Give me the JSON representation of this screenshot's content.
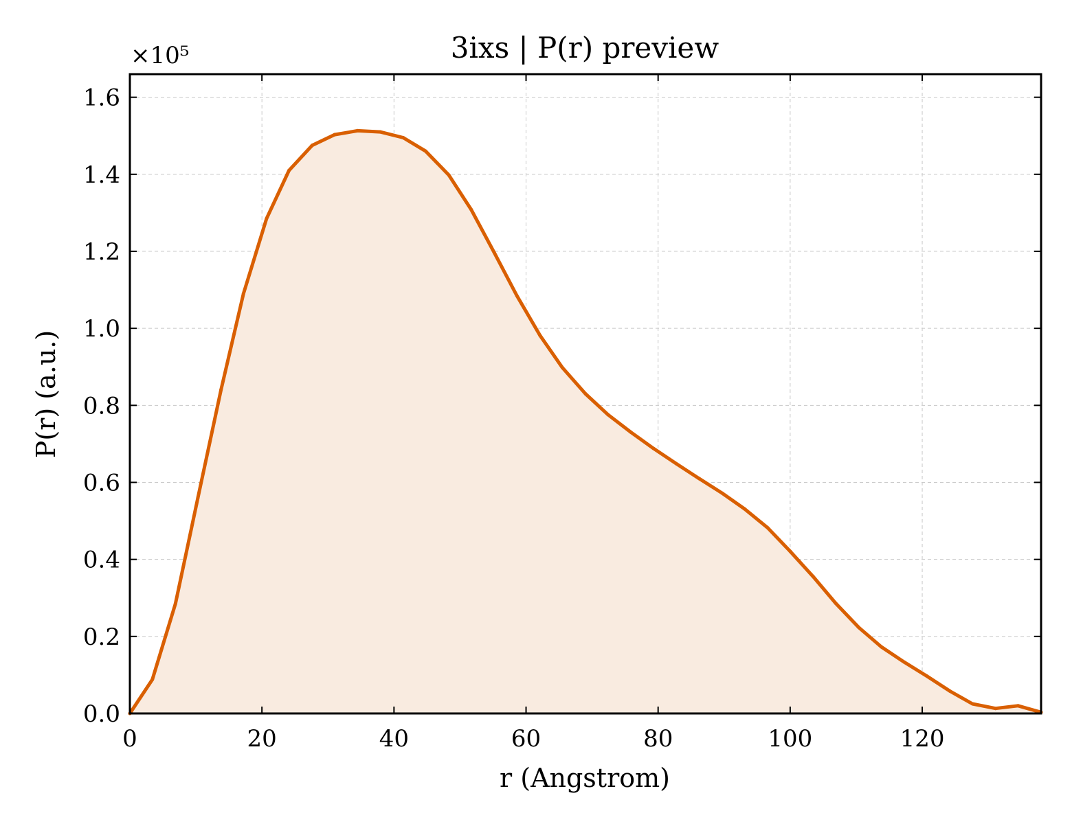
{
  "chart_data": {
    "type": "area",
    "title": "3ixs | P(r) preview",
    "xlabel": "r (Angstrom)",
    "ylabel": "P(r) (a.u.)",
    "y_multiplier_label": "×10⁵",
    "y_scale_factor": 100000,
    "xlim": [
      0,
      138
    ],
    "ylim": [
      0,
      166000
    ],
    "x_ticks": [
      0,
      20,
      40,
      60,
      80,
      100,
      120
    ],
    "y_ticks": [
      0,
      20000,
      40000,
      60000,
      80000,
      100000,
      120000,
      140000,
      160000
    ],
    "y_tick_labels": [
      "0.0",
      "0.2",
      "0.4",
      "0.6",
      "0.8",
      "1.0",
      "1.2",
      "1.4",
      "1.6"
    ],
    "grid": true,
    "legend": "none",
    "colors": {
      "line": "#d95f02",
      "fill": "#f9ebe0"
    },
    "series": [
      {
        "x": [
          0,
          3.4,
          6.9,
          10.3,
          13.8,
          17.2,
          20.7,
          24.1,
          27.6,
          31.0,
          34.5,
          37.9,
          41.4,
          44.8,
          48.3,
          51.7,
          55.2,
          58.6,
          62.1,
          65.5,
          69.0,
          72.4,
          75.9,
          79.3,
          82.8,
          86.2,
          89.7,
          93.1,
          96.6,
          100.0,
          103.5,
          106.9,
          110.4,
          113.8,
          117.3,
          120.7,
          124.2,
          127.6,
          131.1,
          134.5,
          138.0
        ],
        "values": [
          0,
          8800,
          28500,
          56000,
          84000,
          109000,
          128500,
          141000,
          147500,
          150300,
          151300,
          151000,
          149500,
          146000,
          139800,
          130800,
          119600,
          108500,
          98200,
          89800,
          83000,
          77600,
          73000,
          68800,
          64800,
          61000,
          57200,
          53100,
          48200,
          42100,
          35500,
          28600,
          22300,
          17300,
          13300,
          9700,
          5800,
          2500,
          1300,
          2000,
          300
        ]
      }
    ]
  }
}
